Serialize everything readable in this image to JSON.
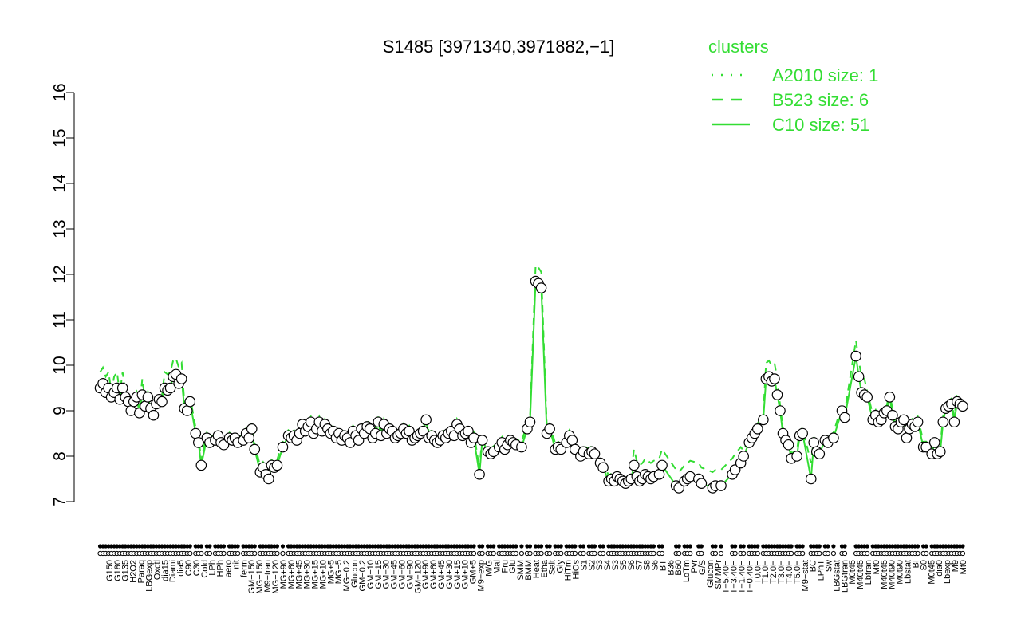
{
  "chart_data": {
    "type": "line",
    "title": "S1485 [3971340,3971882,−1]",
    "xlabel": "",
    "ylabel": "",
    "ylim": [
      7,
      16
    ],
    "yticks": [
      7,
      8,
      9,
      10,
      11,
      12,
      13,
      14,
      15,
      16
    ],
    "grid": false,
    "legend": {
      "title": "clusters",
      "placement": "top-right",
      "entries": [
        {
          "label": "A2010 size: 1",
          "style": "dotted"
        },
        {
          "label": "B523 size: 6",
          "style": "dashed"
        },
        {
          "label": "C10 size: 51",
          "style": "solid"
        }
      ]
    },
    "colors": {
      "series": "#33dd33",
      "points": "#ffffff",
      "points_stroke": "#000000",
      "axis": "#000000"
    },
    "xticklabels": [
      "G150",
      "G180",
      "G135",
      "H2O2",
      "Paraq",
      "LBGexp",
      "Oxctl",
      "dia15",
      "Diami",
      "dia5",
      "C90",
      "C30",
      "Cold",
      "LPh",
      "HPh",
      "aero",
      "nit",
      "ferm",
      "GM+150",
      "MG+150",
      "M9−tran",
      "MG+120",
      "MG+90",
      "MG+60",
      "MG+45",
      "MG+30",
      "MG+15",
      "MG+10",
      "MG+5",
      "MG−5",
      "MG−0.2",
      "Glucon",
      "GM−0.2",
      "GM−10",
      "GM−15",
      "GM−30",
      "GM−45",
      "GM−60",
      "GM−90",
      "GM+120",
      "GM+90",
      "GM+60",
      "GM+45",
      "GM+30",
      "GM+15",
      "GM+10",
      "GM+5",
      "M9−exp",
      "M/G",
      "Mal",
      "Fru",
      "Glu",
      "SMM",
      "BMM",
      "Heat",
      "Etha",
      "Salt",
      "Gly",
      "HiTm",
      "HiOs",
      "S1",
      "S2",
      "S3",
      "S4",
      "S3",
      "S5",
      "S6",
      "S7",
      "S8",
      "S6",
      "BT",
      "B36",
      "B60",
      "LoTm",
      "Pyr",
      "G/S",
      "Glucon",
      "SMMPr",
      "T−5.40H",
      "T−3.40H",
      "T−1.40H",
      "T−0.40H",
      "T0.0H",
      "T1.0H",
      "T2.0H",
      "T3.0H",
      "T4.0H",
      "T5.0H",
      "M9−stat",
      "BC",
      "LPhT",
      "Sw",
      "LBGstat",
      "LBGtran",
      "M0t45",
      "M40t45",
      "Lbtran",
      "Mt0",
      "M40t45",
      "M40t90",
      "M0t90",
      "Lbstat",
      "BI",
      "S0",
      "M0t45",
      "dia0",
      "Lbexp",
      "M9",
      "Mt0"
    ],
    "points": [
      {
        "x": 1,
        "y": 9.5
      },
      {
        "x": 2,
        "y": 9.6
      },
      {
        "x": 3,
        "y": 9.4
      },
      {
        "x": 4,
        "y": 9.5
      },
      {
        "x": 5,
        "y": 9.3
      },
      {
        "x": 6,
        "y": 9.4
      },
      {
        "x": 7,
        "y": 9.5
      },
      {
        "x": 8,
        "y": 9.25
      },
      {
        "x": 9,
        "y": 9.5
      },
      {
        "x": 10,
        "y": 9.3
      },
      {
        "x": 11,
        "y": 9.2
      },
      {
        "x": 12,
        "y": 9.0
      },
      {
        "x": 13,
        "y": 9.2
      },
      {
        "x": 14,
        "y": 9.3
      },
      {
        "x": 15,
        "y": 8.95
      },
      {
        "x": 16,
        "y": 9.35
      },
      {
        "x": 17,
        "y": 9.1
      },
      {
        "x": 18,
        "y": 9.3
      },
      {
        "x": 19,
        "y": 9.05
      },
      {
        "x": 20,
        "y": 8.9
      },
      {
        "x": 21,
        "y": 9.15
      },
      {
        "x": 22,
        "y": 9.25
      },
      {
        "x": 23,
        "y": 9.2
      },
      {
        "x": 24,
        "y": 9.5
      },
      {
        "x": 25,
        "y": 9.45
      },
      {
        "x": 26,
        "y": 9.5
      },
      {
        "x": 27,
        "y": 9.75
      },
      {
        "x": 28,
        "y": 9.8
      },
      {
        "x": 29,
        "y": 9.6
      },
      {
        "x": 30,
        "y": 9.7
      },
      {
        "x": 31,
        "y": 9.05
      },
      {
        "x": 32,
        "y": 9.0
      },
      {
        "x": 33,
        "y": 9.2
      },
      {
        "x": 35,
        "y": 8.5
      },
      {
        "x": 36,
        "y": 8.3
      },
      {
        "x": 37,
        "y": 7.8
      },
      {
        "x": 39,
        "y": 8.4
      },
      {
        "x": 40,
        "y": 8.3
      },
      {
        "x": 42,
        "y": 8.35
      },
      {
        "x": 43,
        "y": 8.45
      },
      {
        "x": 44,
        "y": 8.3
      },
      {
        "x": 45,
        "y": 8.25
      },
      {
        "x": 47,
        "y": 8.4
      },
      {
        "x": 48,
        "y": 8.35
      },
      {
        "x": 49,
        "y": 8.4
      },
      {
        "x": 50,
        "y": 8.3
      },
      {
        "x": 52,
        "y": 8.35
      },
      {
        "x": 53,
        "y": 8.5
      },
      {
        "x": 54,
        "y": 8.4
      },
      {
        "x": 55,
        "y": 8.6
      },
      {
        "x": 56,
        "y": 8.15
      },
      {
        "x": 58,
        "y": 7.65
      },
      {
        "x": 59,
        "y": 7.75
      },
      {
        "x": 60,
        "y": 7.6
      },
      {
        "x": 61,
        "y": 7.5
      },
      {
        "x": 62,
        "y": 7.8
      },
      {
        "x": 63,
        "y": 7.75
      },
      {
        "x": 64,
        "y": 7.8
      },
      {
        "x": 66,
        "y": 8.2
      },
      {
        "x": 68,
        "y": 8.45
      },
      {
        "x": 69,
        "y": 8.4
      },
      {
        "x": 70,
        "y": 8.45
      },
      {
        "x": 71,
        "y": 8.35
      },
      {
        "x": 72,
        "y": 8.5
      },
      {
        "x": 73,
        "y": 8.7
      },
      {
        "x": 74,
        "y": 8.55
      },
      {
        "x": 75,
        "y": 8.65
      },
      {
        "x": 76,
        "y": 8.75
      },
      {
        "x": 77,
        "y": 8.5
      },
      {
        "x": 78,
        "y": 8.6
      },
      {
        "x": 79,
        "y": 8.75
      },
      {
        "x": 80,
        "y": 8.55
      },
      {
        "x": 81,
        "y": 8.7
      },
      {
        "x": 82,
        "y": 8.6
      },
      {
        "x": 83,
        "y": 8.5
      },
      {
        "x": 84,
        "y": 8.55
      },
      {
        "x": 85,
        "y": 8.4
      },
      {
        "x": 86,
        "y": 8.5
      },
      {
        "x": 87,
        "y": 8.35
      },
      {
        "x": 88,
        "y": 8.45
      },
      {
        "x": 89,
        "y": 8.4
      },
      {
        "x": 90,
        "y": 8.3
      },
      {
        "x": 91,
        "y": 8.55
      },
      {
        "x": 92,
        "y": 8.45
      },
      {
        "x": 93,
        "y": 8.35
      },
      {
        "x": 94,
        "y": 8.6
      },
      {
        "x": 95,
        "y": 8.5
      },
      {
        "x": 96,
        "y": 8.65
      },
      {
        "x": 97,
        "y": 8.6
      },
      {
        "x": 98,
        "y": 8.4
      },
      {
        "x": 99,
        "y": 8.5
      },
      {
        "x": 100,
        "y": 8.75
      },
      {
        "x": 101,
        "y": 8.45
      },
      {
        "x": 102,
        "y": 8.7
      },
      {
        "x": 103,
        "y": 8.5
      },
      {
        "x": 104,
        "y": 8.6
      },
      {
        "x": 105,
        "y": 8.55
      },
      {
        "x": 106,
        "y": 8.4
      },
      {
        "x": 107,
        "y": 8.45
      },
      {
        "x": 108,
        "y": 8.5
      },
      {
        "x": 109,
        "y": 8.6
      },
      {
        "x": 110,
        "y": 8.5
      },
      {
        "x": 111,
        "y": 8.55
      },
      {
        "x": 112,
        "y": 8.35
      },
      {
        "x": 113,
        "y": 8.4
      },
      {
        "x": 114,
        "y": 8.45
      },
      {
        "x": 115,
        "y": 8.5
      },
      {
        "x": 116,
        "y": 8.55
      },
      {
        "x": 117,
        "y": 8.8
      },
      {
        "x": 118,
        "y": 8.4
      },
      {
        "x": 119,
        "y": 8.45
      },
      {
        "x": 120,
        "y": 8.35
      },
      {
        "x": 121,
        "y": 8.3
      },
      {
        "x": 122,
        "y": 8.35
      },
      {
        "x": 123,
        "y": 8.45
      },
      {
        "x": 124,
        "y": 8.4
      },
      {
        "x": 125,
        "y": 8.5
      },
      {
        "x": 126,
        "y": 8.55
      },
      {
        "x": 127,
        "y": 8.45
      },
      {
        "x": 128,
        "y": 8.7
      },
      {
        "x": 129,
        "y": 8.6
      },
      {
        "x": 130,
        "y": 8.45
      },
      {
        "x": 131,
        "y": 8.5
      },
      {
        "x": 132,
        "y": 8.55
      },
      {
        "x": 133,
        "y": 8.3
      },
      {
        "x": 134,
        "y": 8.4
      },
      {
        "x": 136,
        "y": 7.6
      },
      {
        "x": 137,
        "y": 8.35
      },
      {
        "x": 139,
        "y": 8.1
      },
      {
        "x": 140,
        "y": 8.05
      },
      {
        "x": 141,
        "y": 8.1
      },
      {
        "x": 143,
        "y": 8.2
      },
      {
        "x": 144,
        "y": 8.3
      },
      {
        "x": 145,
        "y": 8.15
      },
      {
        "x": 146,
        "y": 8.25
      },
      {
        "x": 147,
        "y": 8.35
      },
      {
        "x": 148,
        "y": 8.3
      },
      {
        "x": 149,
        "y": 8.25
      },
      {
        "x": 151,
        "y": 8.2
      },
      {
        "x": 153,
        "y": 8.6
      },
      {
        "x": 154,
        "y": 8.75
      },
      {
        "x": 156,
        "y": 11.85
      },
      {
        "x": 157,
        "y": 11.8
      },
      {
        "x": 158,
        "y": 11.7
      },
      {
        "x": 160,
        "y": 8.5
      },
      {
        "x": 161,
        "y": 8.6
      },
      {
        "x": 163,
        "y": 8.15
      },
      {
        "x": 164,
        "y": 8.2
      },
      {
        "x": 165,
        "y": 8.15
      },
      {
        "x": 167,
        "y": 8.3
      },
      {
        "x": 168,
        "y": 8.45
      },
      {
        "x": 169,
        "y": 8.35
      },
      {
        "x": 170,
        "y": 8.15
      },
      {
        "x": 172,
        "y": 8.0
      },
      {
        "x": 173,
        "y": 8.1
      },
      {
        "x": 175,
        "y": 8.05
      },
      {
        "x": 176,
        "y": 8.1
      },
      {
        "x": 177,
        "y": 8.05
      },
      {
        "x": 179,
        "y": 7.85
      },
      {
        "x": 180,
        "y": 7.75
      },
      {
        "x": 182,
        "y": 7.45
      },
      {
        "x": 183,
        "y": 7.5
      },
      {
        "x": 184,
        "y": 7.45
      },
      {
        "x": 185,
        "y": 7.55
      },
      {
        "x": 186,
        "y": 7.5
      },
      {
        "x": 187,
        "y": 7.45
      },
      {
        "x": 188,
        "y": 7.4
      },
      {
        "x": 189,
        "y": 7.45
      },
      {
        "x": 190,
        "y": 7.5
      },
      {
        "x": 191,
        "y": 7.8
      },
      {
        "x": 192,
        "y": 7.55
      },
      {
        "x": 193,
        "y": 7.45
      },
      {
        "x": 194,
        "y": 7.5
      },
      {
        "x": 195,
        "y": 7.6
      },
      {
        "x": 196,
        "y": 7.55
      },
      {
        "x": 197,
        "y": 7.5
      },
      {
        "x": 198,
        "y": 7.55
      },
      {
        "x": 200,
        "y": 7.6
      },
      {
        "x": 201,
        "y": 7.8
      },
      {
        "x": 206,
        "y": 7.35
      },
      {
        "x": 207,
        "y": 7.3
      },
      {
        "x": 209,
        "y": 7.45
      },
      {
        "x": 210,
        "y": 7.5
      },
      {
        "x": 211,
        "y": 7.55
      },
      {
        "x": 214,
        "y": 7.5
      },
      {
        "x": 215,
        "y": 7.4
      },
      {
        "x": 219,
        "y": 7.3
      },
      {
        "x": 220,
        "y": 7.35
      },
      {
        "x": 222,
        "y": 7.35
      },
      {
        "x": 226,
        "y": 7.6
      },
      {
        "x": 227,
        "y": 7.7
      },
      {
        "x": 229,
        "y": 7.85
      },
      {
        "x": 230,
        "y": 8.0
      },
      {
        "x": 232,
        "y": 8.3
      },
      {
        "x": 233,
        "y": 8.4
      },
      {
        "x": 234,
        "y": 8.5
      },
      {
        "x": 235,
        "y": 8.6
      },
      {
        "x": 237,
        "y": 8.8
      },
      {
        "x": 238,
        "y": 9.7
      },
      {
        "x": 239,
        "y": 9.75
      },
      {
        "x": 240,
        "y": 9.65
      },
      {
        "x": 241,
        "y": 9.7
      },
      {
        "x": 242,
        "y": 9.35
      },
      {
        "x": 243,
        "y": 9.0
      },
      {
        "x": 244,
        "y": 8.5
      },
      {
        "x": 245,
        "y": 8.35
      },
      {
        "x": 246,
        "y": 8.25
      },
      {
        "x": 247,
        "y": 7.95
      },
      {
        "x": 249,
        "y": 8.0
      },
      {
        "x": 250,
        "y": 8.45
      },
      {
        "x": 251,
        "y": 8.5
      },
      {
        "x": 254,
        "y": 7.5
      },
      {
        "x": 255,
        "y": 8.3
      },
      {
        "x": 256,
        "y": 8.1
      },
      {
        "x": 257,
        "y": 8.05
      },
      {
        "x": 259,
        "y": 8.35
      },
      {
        "x": 260,
        "y": 8.3
      },
      {
        "x": 262,
        "y": 8.4
      },
      {
        "x": 265,
        "y": 9.0
      },
      {
        "x": 266,
        "y": 8.85
      },
      {
        "x": 270,
        "y": 10.2
      },
      {
        "x": 271,
        "y": 9.75
      },
      {
        "x": 272,
        "y": 9.4
      },
      {
        "x": 273,
        "y": 9.35
      },
      {
        "x": 274,
        "y": 9.3
      },
      {
        "x": 276,
        "y": 8.8
      },
      {
        "x": 277,
        "y": 8.9
      },
      {
        "x": 278,
        "y": 8.75
      },
      {
        "x": 279,
        "y": 8.8
      },
      {
        "x": 280,
        "y": 8.95
      },
      {
        "x": 281,
        "y": 9.0
      },
      {
        "x": 282,
        "y": 9.3
      },
      {
        "x": 283,
        "y": 8.9
      },
      {
        "x": 284,
        "y": 8.65
      },
      {
        "x": 285,
        "y": 8.6
      },
      {
        "x": 286,
        "y": 8.75
      },
      {
        "x": 287,
        "y": 8.8
      },
      {
        "x": 288,
        "y": 8.4
      },
      {
        "x": 289,
        "y": 8.6
      },
      {
        "x": 290,
        "y": 8.7
      },
      {
        "x": 291,
        "y": 8.65
      },
      {
        "x": 292,
        "y": 8.75
      },
      {
        "x": 294,
        "y": 8.2
      },
      {
        "x": 295,
        "y": 8.2
      },
      {
        "x": 297,
        "y": 8.05
      },
      {
        "x": 298,
        "y": 8.3
      },
      {
        "x": 299,
        "y": 8.05
      },
      {
        "x": 300,
        "y": 8.1
      },
      {
        "x": 301,
        "y": 8.75
      },
      {
        "x": 302,
        "y": 9.05
      },
      {
        "x": 303,
        "y": 9.1
      },
      {
        "x": 304,
        "y": 9.15
      },
      {
        "x": 305,
        "y": 8.75
      },
      {
        "x": 306,
        "y": 9.2
      },
      {
        "x": 307,
        "y": 9.15
      },
      {
        "x": 308,
        "y": 9.1
      }
    ],
    "x_range": [
      0,
      310
    ]
  }
}
